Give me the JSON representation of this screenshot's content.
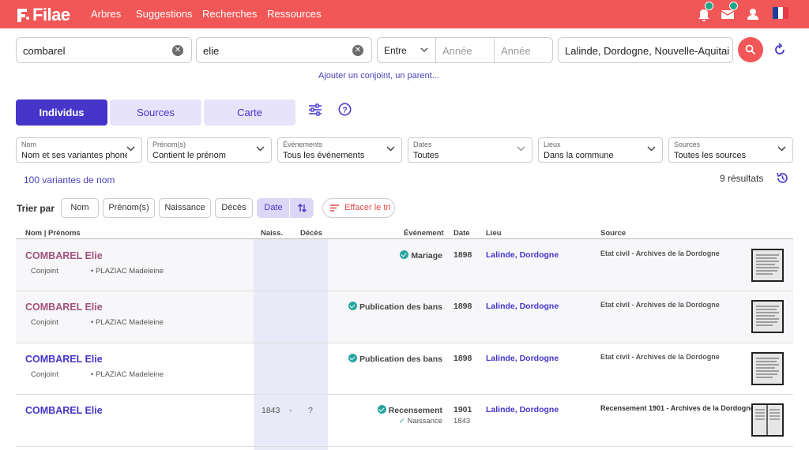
{
  "brand": {
    "name": "Filae",
    "accent": "#f25757",
    "primary": "#4535c9"
  },
  "nav": [
    "Arbres",
    "Suggestions",
    "Recherches",
    "Ressources"
  ],
  "search": {
    "surname": "combarel",
    "firstname": "elie",
    "date_mode": "Entre",
    "year_from_placeholder": "Année",
    "year_to_placeholder": "Année",
    "place": "Lalinde, Dordogne, Nouvelle-Aquitain...",
    "add_relative": "Ajouter un conjoint, un parent..."
  },
  "tabs": [
    "Individus",
    "Sources",
    "Carte"
  ],
  "filters": [
    {
      "label": "Nom",
      "value": "Nom et ses variantes phoné..."
    },
    {
      "label": "Prénom(s)",
      "value": "Contient le prénom"
    },
    {
      "label": "Événements",
      "value": "Tous les événements"
    },
    {
      "label": "Dates",
      "value": "Toutes"
    },
    {
      "label": "Lieux",
      "value": "Dans la commune"
    },
    {
      "label": "Sources",
      "value": "Toutes les sources"
    }
  ],
  "variants": "100 variantes de nom",
  "results_count": "9 résultats",
  "sort": {
    "label": "Trier par",
    "buttons": [
      "Nom",
      "Prénom(s)",
      "Naissance",
      "Décès",
      "Date"
    ],
    "clear": "Effacer le tri"
  },
  "columns": {
    "name": "Nom | Prénoms",
    "birth": "Naiss.",
    "death": "Décès",
    "event": "Événement",
    "date": "Date",
    "place": "Lieu",
    "source": "Source"
  },
  "rows": [
    {
      "name": "COMBAREL Elie",
      "relation": "Conjoint",
      "relative": "PLAZIAC Madeleine",
      "birth": "",
      "death": "",
      "event": "Mariage",
      "date": "1898",
      "place": "Lalinde, Dordogne",
      "source": "Etat civil - Archives de la Dordogne",
      "visited": true
    },
    {
      "name": "COMBAREL Elie",
      "relation": "Conjoint",
      "relative": "PLAZIAC Madeleine",
      "birth": "",
      "death": "",
      "event": "Publication des bans",
      "date": "1898",
      "place": "Lalinde, Dordogne",
      "source": "Etat civil - Archives de la Dordogne",
      "visited": true
    },
    {
      "name": "COMBAREL Elie",
      "relation": "Conjoint",
      "relative": "PLAZIAC Madeleine",
      "birth": "",
      "death": "",
      "event": "Publication des bans",
      "date": "1898",
      "place": "Lalinde, Dordogne",
      "source": "Etat civil - Archives de la Dordogne",
      "visited": false
    },
    {
      "name": "COMBAREL Elie",
      "relation": "",
      "relative": "",
      "birth": "1843",
      "dash": "-",
      "death": "?",
      "event": "Recensement",
      "date": "1901",
      "sub_event": "Naissance",
      "sub_date": "1843",
      "place": "Lalinde, Dordogne",
      "source": "Recensement 1901 - Archives de la Dordogne",
      "visited": false
    }
  ]
}
